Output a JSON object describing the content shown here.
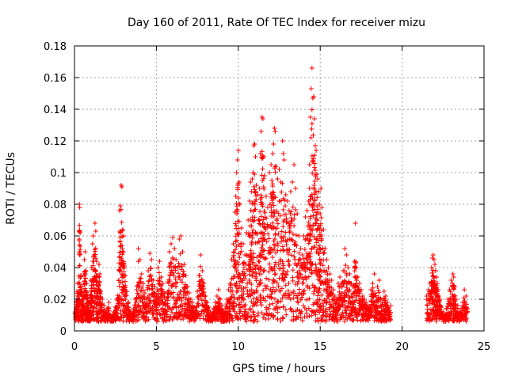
{
  "chart_data": {
    "type": "scatter",
    "title": "Day 160 of 2011, Rate Of TEC Index for receiver mizu",
    "xlabel": "GPS time / hours",
    "ylabel": "ROTI / TECUs",
    "xlim": [
      0,
      25
    ],
    "ylim": [
      0,
      0.18
    ],
    "x_ticks": [
      0,
      5,
      10,
      15,
      20,
      25
    ],
    "x_tick_labels": [
      "0",
      "5",
      "10",
      "15",
      "20",
      "25"
    ],
    "y_ticks": [
      0,
      0.02,
      0.04,
      0.06,
      0.08,
      0.1,
      0.12,
      0.14,
      0.16,
      0.18
    ],
    "y_tick_labels": [
      "0",
      "0.02",
      "0.04",
      "0.06",
      "0.08",
      "0.1",
      "0.12",
      "0.14",
      "0.16",
      "0.18"
    ],
    "grid": true,
    "marker": "+",
    "color": "#ff0000",
    "points": [
      [
        0.05,
        0.012
      ],
      [
        0.1,
        0.018
      ],
      [
        0.15,
        0.025
      ],
      [
        0.2,
        0.03
      ],
      [
        0.25,
        0.022
      ],
      [
        0.3,
        0.08
      ],
      [
        0.32,
        0.078
      ],
      [
        0.35,
        0.062
      ],
      [
        0.4,
        0.035
      ],
      [
        0.45,
        0.028
      ],
      [
        0.5,
        0.02
      ],
      [
        0.55,
        0.015
      ],
      [
        0.6,
        0.045
      ],
      [
        0.65,
        0.05
      ],
      [
        0.7,
        0.038
      ],
      [
        0.75,
        0.03
      ],
      [
        0.8,
        0.022
      ],
      [
        0.85,
        0.018
      ],
      [
        0.9,
        0.013
      ],
      [
        0.95,
        0.01
      ],
      [
        1.0,
        0.032
      ],
      [
        1.05,
        0.04
      ],
      [
        1.1,
        0.055
      ],
      [
        1.15,
        0.06
      ],
      [
        1.2,
        0.048
      ],
      [
        1.25,
        0.068
      ],
      [
        1.3,
        0.063
      ],
      [
        1.35,
        0.044
      ],
      [
        1.4,
        0.035
      ],
      [
        1.45,
        0.028
      ],
      [
        1.5,
        0.042
      ],
      [
        1.55,
        0.036
      ],
      [
        1.6,
        0.025
      ],
      [
        1.7,
        0.02
      ],
      [
        1.8,
        0.016
      ],
      [
        1.9,
        0.012
      ],
      [
        2.0,
        0.014
      ],
      [
        2.1,
        0.018
      ],
      [
        2.2,
        0.01
      ],
      [
        2.3,
        0.009
      ],
      [
        2.4,
        0.012
      ],
      [
        2.5,
        0.015
      ],
      [
        2.6,
        0.02
      ],
      [
        2.7,
        0.032
      ],
      [
        2.75,
        0.076
      ],
      [
        2.8,
        0.079
      ],
      [
        2.85,
        0.092
      ],
      [
        2.9,
        0.091
      ],
      [
        2.95,
        0.064
      ],
      [
        3.0,
        0.06
      ],
      [
        3.05,
        0.041
      ],
      [
        3.1,
        0.035
      ],
      [
        3.2,
        0.025
      ],
      [
        3.3,
        0.018
      ],
      [
        3.4,
        0.012
      ],
      [
        3.5,
        0.01
      ],
      [
        3.6,
        0.014
      ],
      [
        3.7,
        0.02
      ],
      [
        3.8,
        0.026
      ],
      [
        3.9,
        0.052
      ],
      [
        4.0,
        0.045
      ],
      [
        4.1,
        0.036
      ],
      [
        4.2,
        0.03
      ],
      [
        4.3,
        0.024
      ],
      [
        4.4,
        0.02
      ],
      [
        4.5,
        0.038
      ],
      [
        4.6,
        0.049
      ],
      [
        4.7,
        0.045
      ],
      [
        4.8,
        0.032
      ],
      [
        4.9,
        0.028
      ],
      [
        5.0,
        0.022
      ],
      [
        5.1,
        0.04
      ],
      [
        5.2,
        0.044
      ],
      [
        5.3,
        0.034
      ],
      [
        5.4,
        0.03
      ],
      [
        5.5,
        0.024
      ],
      [
        5.6,
        0.02
      ],
      [
        5.7,
        0.031
      ],
      [
        5.8,
        0.05
      ],
      [
        5.9,
        0.055
      ],
      [
        6.0,
        0.059
      ],
      [
        6.1,
        0.052
      ],
      [
        6.2,
        0.045
      ],
      [
        6.3,
        0.04
      ],
      [
        6.4,
        0.058
      ],
      [
        6.5,
        0.06
      ],
      [
        6.6,
        0.05
      ],
      [
        6.7,
        0.042
      ],
      [
        6.8,
        0.035
      ],
      [
        6.9,
        0.028
      ],
      [
        7.0,
        0.024
      ],
      [
        7.1,
        0.02
      ],
      [
        7.2,
        0.018
      ],
      [
        7.3,
        0.015
      ],
      [
        7.4,
        0.013
      ],
      [
        7.5,
        0.025
      ],
      [
        7.6,
        0.035
      ],
      [
        7.7,
        0.048
      ],
      [
        7.8,
        0.038
      ],
      [
        7.9,
        0.03
      ],
      [
        8.0,
        0.022
      ],
      [
        8.1,
        0.018
      ],
      [
        8.2,
        0.015
      ],
      [
        8.3,
        0.012
      ],
      [
        8.4,
        0.01
      ],
      [
        8.5,
        0.014
      ],
      [
        8.6,
        0.018
      ],
      [
        8.7,
        0.022
      ],
      [
        8.8,
        0.026
      ],
      [
        8.9,
        0.02
      ],
      [
        9.0,
        0.016
      ],
      [
        9.1,
        0.012
      ],
      [
        9.2,
        0.014
      ],
      [
        9.3,
        0.02
      ],
      [
        9.4,
        0.026
      ],
      [
        9.5,
        0.03
      ],
      [
        9.6,
        0.045
      ],
      [
        9.7,
        0.055
      ],
      [
        9.8,
        0.075
      ],
      [
        9.85,
        0.085
      ],
      [
        9.9,
        0.1
      ],
      [
        9.95,
        0.108
      ],
      [
        10.0,
        0.114
      ],
      [
        10.05,
        0.094
      ],
      [
        10.1,
        0.08
      ],
      [
        10.2,
        0.065
      ],
      [
        10.3,
        0.055
      ],
      [
        10.4,
        0.048
      ],
      [
        10.5,
        0.062
      ],
      [
        10.6,
        0.07
      ],
      [
        10.7,
        0.082
      ],
      [
        10.75,
        0.094
      ],
      [
        10.8,
        0.088
      ],
      [
        10.85,
        0.096
      ],
      [
        10.9,
        0.1
      ],
      [
        10.95,
        0.117
      ],
      [
        11.0,
        0.118
      ],
      [
        11.05,
        0.11
      ],
      [
        11.1,
        0.092
      ],
      [
        11.2,
        0.086
      ],
      [
        11.3,
        0.09
      ],
      [
        11.35,
        0.112
      ],
      [
        11.4,
        0.126
      ],
      [
        11.45,
        0.135
      ],
      [
        11.5,
        0.134
      ],
      [
        11.55,
        0.11
      ],
      [
        11.6,
        0.098
      ],
      [
        11.7,
        0.085
      ],
      [
        11.8,
        0.078
      ],
      [
        11.9,
        0.1
      ],
      [
        12.0,
        0.105
      ],
      [
        12.05,
        0.095
      ],
      [
        12.1,
        0.112
      ],
      [
        12.15,
        0.118
      ],
      [
        12.2,
        0.128
      ],
      [
        12.25,
        0.126
      ],
      [
        12.3,
        0.104
      ],
      [
        12.4,
        0.096
      ],
      [
        12.5,
        0.102
      ],
      [
        12.6,
        0.094
      ],
      [
        12.7,
        0.12
      ],
      [
        12.75,
        0.112
      ],
      [
        12.8,
        0.108
      ],
      [
        12.9,
        0.086
      ],
      [
        13.0,
        0.082
      ],
      [
        13.1,
        0.076
      ],
      [
        13.2,
        0.088
      ],
      [
        13.3,
        0.094
      ],
      [
        13.4,
        0.105
      ],
      [
        13.5,
        0.09
      ],
      [
        13.6,
        0.074
      ],
      [
        13.7,
        0.06
      ],
      [
        13.8,
        0.052
      ],
      [
        13.9,
        0.048
      ],
      [
        14.0,
        0.06
      ],
      [
        14.1,
        0.072
      ],
      [
        14.2,
        0.076
      ],
      [
        14.3,
        0.082
      ],
      [
        14.35,
        0.105
      ],
      [
        14.4,
        0.135
      ],
      [
        14.45,
        0.153
      ],
      [
        14.5,
        0.166
      ],
      [
        14.55,
        0.147
      ],
      [
        14.6,
        0.148
      ],
      [
        14.65,
        0.134
      ],
      [
        14.7,
        0.117
      ],
      [
        14.75,
        0.114
      ],
      [
        14.8,
        0.099
      ],
      [
        14.85,
        0.096
      ],
      [
        14.9,
        0.088
      ],
      [
        14.95,
        0.08
      ],
      [
        15.0,
        0.074
      ],
      [
        15.05,
        0.09
      ],
      [
        15.1,
        0.078
      ],
      [
        15.2,
        0.064
      ],
      [
        15.3,
        0.052
      ],
      [
        15.4,
        0.045
      ],
      [
        15.5,
        0.04
      ],
      [
        15.6,
        0.036
      ],
      [
        15.7,
        0.032
      ],
      [
        15.8,
        0.026
      ],
      [
        15.9,
        0.022
      ],
      [
        16.0,
        0.02
      ],
      [
        16.1,
        0.03
      ],
      [
        16.2,
        0.034
      ],
      [
        16.3,
        0.03
      ],
      [
        16.4,
        0.038
      ],
      [
        16.5,
        0.052
      ],
      [
        16.6,
        0.048
      ],
      [
        16.7,
        0.04
      ],
      [
        16.8,
        0.036
      ],
      [
        16.9,
        0.03
      ],
      [
        17.0,
        0.028
      ],
      [
        17.1,
        0.044
      ],
      [
        17.15,
        0.068
      ],
      [
        17.2,
        0.04
      ],
      [
        17.3,
        0.034
      ],
      [
        17.4,
        0.03
      ],
      [
        17.5,
        0.026
      ],
      [
        17.6,
        0.022
      ],
      [
        17.7,
        0.02
      ],
      [
        17.8,
        0.018
      ],
      [
        17.9,
        0.016
      ],
      [
        18.0,
        0.015
      ],
      [
        18.1,
        0.026
      ],
      [
        18.2,
        0.03
      ],
      [
        18.3,
        0.036
      ],
      [
        18.4,
        0.022
      ],
      [
        18.5,
        0.028
      ],
      [
        18.6,
        0.032
      ],
      [
        18.7,
        0.02
      ],
      [
        18.8,
        0.018
      ],
      [
        18.9,
        0.025
      ],
      [
        19.0,
        0.022
      ],
      [
        19.1,
        0.018
      ],
      [
        19.2,
        0.014
      ],
      [
        19.3,
        0.016
      ],
      [
        21.5,
        0.022
      ],
      [
        21.6,
        0.026
      ],
      [
        21.7,
        0.03
      ],
      [
        21.8,
        0.04
      ],
      [
        21.85,
        0.046
      ],
      [
        21.9,
        0.048
      ],
      [
        21.95,
        0.045
      ],
      [
        22.0,
        0.042
      ],
      [
        22.05,
        0.038
      ],
      [
        22.1,
        0.034
      ],
      [
        22.15,
        0.03
      ],
      [
        22.2,
        0.026
      ],
      [
        22.3,
        0.02
      ],
      [
        22.4,
        0.015
      ],
      [
        22.5,
        0.012
      ],
      [
        22.6,
        0.01
      ],
      [
        22.7,
        0.014
      ],
      [
        22.8,
        0.02
      ],
      [
        22.9,
        0.026
      ],
      [
        23.0,
        0.032
      ],
      [
        23.1,
        0.036
      ],
      [
        23.15,
        0.034
      ],
      [
        23.2,
        0.028
      ],
      [
        23.3,
        0.02
      ],
      [
        23.4,
        0.016
      ],
      [
        23.5,
        0.012
      ],
      [
        23.6,
        0.014
      ],
      [
        23.7,
        0.018
      ],
      [
        23.8,
        0.026
      ],
      [
        23.9,
        0.022
      ],
      [
        24.0,
        0.014
      ]
    ]
  }
}
